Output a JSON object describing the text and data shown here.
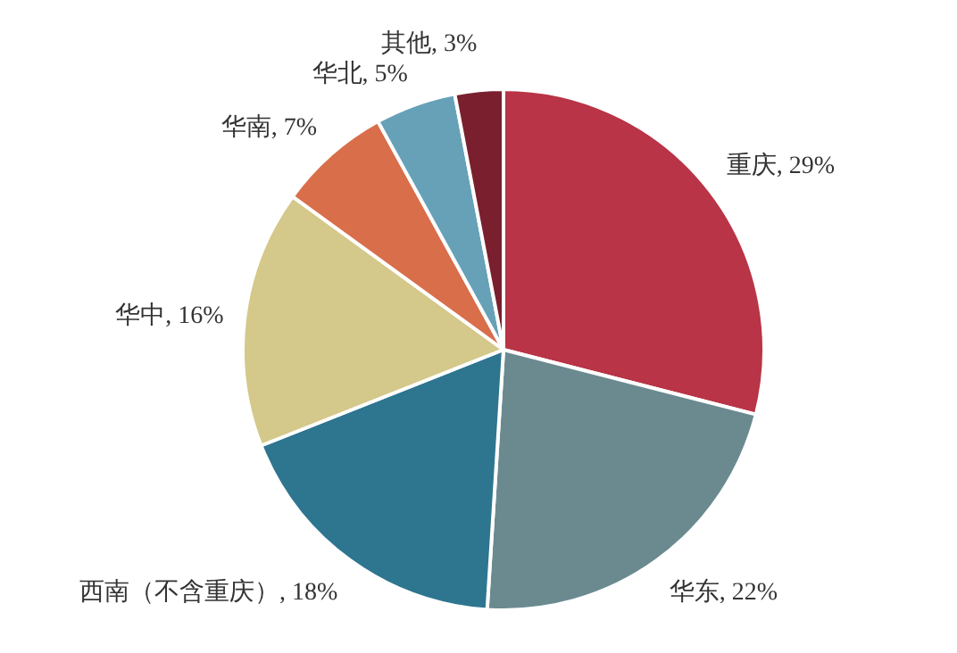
{
  "chart_data": {
    "type": "pie",
    "categories": [
      "重庆",
      "华东",
      "西南（不含重庆）",
      "华中",
      "华南",
      "华北",
      "其他"
    ],
    "values": [
      29,
      22,
      18,
      16,
      7,
      5,
      3
    ],
    "colors": [
      "#b83446",
      "#6a8a90",
      "#2e7590",
      "#d4c88a",
      "#d96e4b",
      "#67a1b8",
      "#7a1f2e"
    ],
    "value_labels": [
      "29%",
      "22%",
      "18%",
      "16%",
      "7%",
      "5%",
      "3%"
    ],
    "legend": false
  }
}
